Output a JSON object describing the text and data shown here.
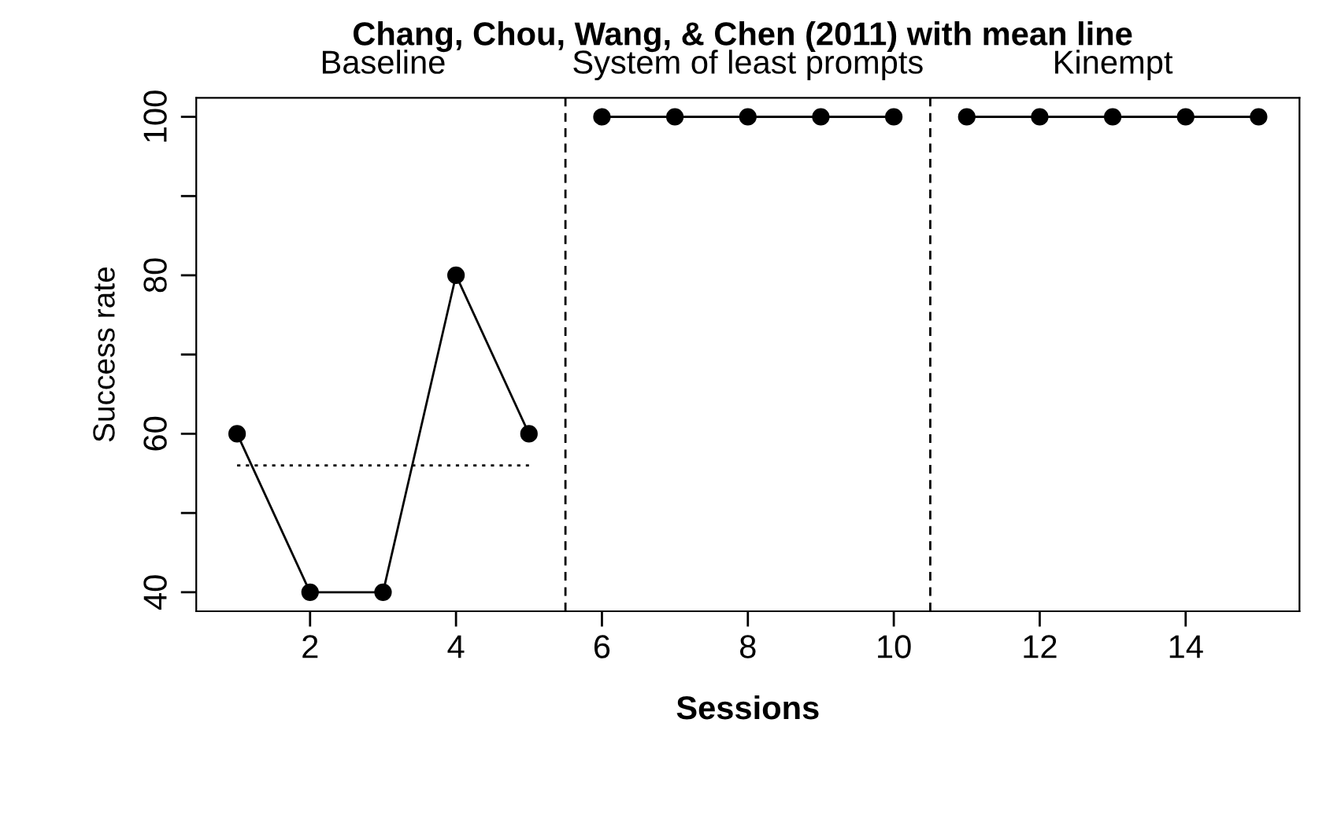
{
  "chart_data": {
    "type": "line",
    "title": "Chang, Chou, Wang, & Chen (2011) with mean line",
    "xlabel": "Sessions",
    "ylabel": "Success rate",
    "series": [
      {
        "color": "#000000",
        "x": [
          1,
          2,
          3,
          4,
          5
        ],
        "values": [
          60,
          40,
          40,
          80,
          60
        ],
        "marker": "circle"
      },
      {
        "color": "#000000",
        "x": [
          6,
          7,
          8,
          9,
          10
        ],
        "values": [
          100,
          100,
          100,
          100,
          100
        ],
        "marker": "circle"
      },
      {
        "color": "#000000",
        "x": [
          11,
          12,
          13,
          14,
          15
        ],
        "values": [
          100,
          100,
          100,
          100,
          100
        ],
        "marker": "circle"
      },
      {
        "color": "#000000",
        "x": [
          1,
          5
        ],
        "values": [
          56,
          56
        ],
        "marker": "none",
        "line_style": "dotted"
      }
    ],
    "annotations": [
      "Baseline",
      "System of least prompts",
      "Kinempt"
    ],
    "ref_lines": [
      {
        "axis": "x",
        "value": 5.5,
        "line_style": "dashed",
        "color": "#000000"
      },
      {
        "axis": "x",
        "value": 10.5,
        "line_style": "dashed",
        "color": "#000000"
      }
    ],
    "xlim": [
      0.44,
      15.56
    ],
    "ylim": [
      37.6,
      102.4
    ],
    "xticks": [
      2,
      4,
      6,
      8,
      10,
      12,
      14
    ],
    "yticks": [
      40,
      {
        "value": 50,
        "label": null
      },
      60,
      {
        "value": 70,
        "label": null
      },
      80,
      {
        "value": 90,
        "label": null
      },
      100
    ],
    "grid": false,
    "legend": false
  }
}
